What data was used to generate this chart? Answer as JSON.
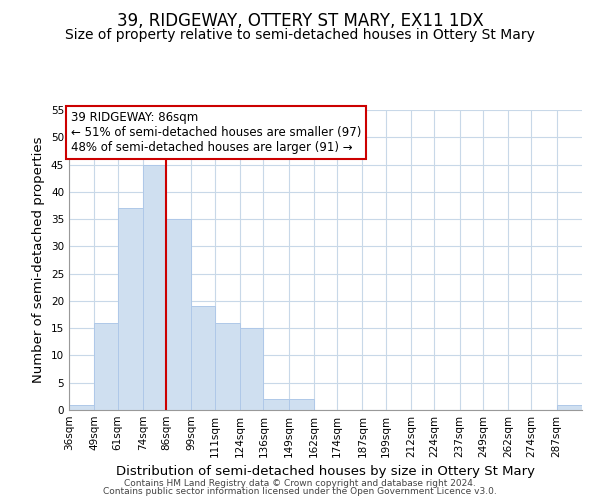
{
  "title": "39, RIDGEWAY, OTTERY ST MARY, EX11 1DX",
  "subtitle": "Size of property relative to semi-detached houses in Ottery St Mary",
  "xlabel": "Distribution of semi-detached houses by size in Ottery St Mary",
  "ylabel": "Number of semi-detached properties",
  "bin_edges": [
    36,
    49,
    61,
    74,
    86,
    99,
    111,
    124,
    136,
    149,
    162,
    174,
    187,
    199,
    212,
    224,
    237,
    249,
    262,
    274,
    287,
    300
  ],
  "bin_labels": [
    "36sqm",
    "49sqm",
    "61sqm",
    "74sqm",
    "86sqm",
    "99sqm",
    "111sqm",
    "124sqm",
    "136sqm",
    "149sqm",
    "162sqm",
    "174sqm",
    "187sqm",
    "199sqm",
    "212sqm",
    "224sqm",
    "237sqm",
    "249sqm",
    "262sqm",
    "274sqm",
    "287sqm"
  ],
  "counts": [
    1,
    16,
    37,
    45,
    35,
    19,
    16,
    15,
    2,
    2,
    0,
    0,
    0,
    0,
    0,
    0,
    0,
    0,
    0,
    0,
    1
  ],
  "bar_color": "#cfdff0",
  "bar_edgecolor": "#afc8e8",
  "vline_x": 86,
  "vline_color": "#cc0000",
  "ylim": [
    0,
    55
  ],
  "yticks": [
    0,
    5,
    10,
    15,
    20,
    25,
    30,
    35,
    40,
    45,
    50,
    55
  ],
  "annotation_text": "39 RIDGEWAY: 86sqm\n← 51% of semi-detached houses are smaller (97)\n48% of semi-detached houses are larger (91) →",
  "annotation_boxcolor": "#ffffff",
  "annotation_boxedgecolor": "#cc0000",
  "footer_line1": "Contains HM Land Registry data © Crown copyright and database right 2024.",
  "footer_line2": "Contains public sector information licensed under the Open Government Licence v3.0.",
  "background_color": "#ffffff",
  "grid_color": "#c8d8e8",
  "title_fontsize": 12,
  "subtitle_fontsize": 10,
  "axis_label_fontsize": 9.5,
  "tick_fontsize": 7.5,
  "annotation_fontsize": 8.5,
  "footer_fontsize": 6.5
}
